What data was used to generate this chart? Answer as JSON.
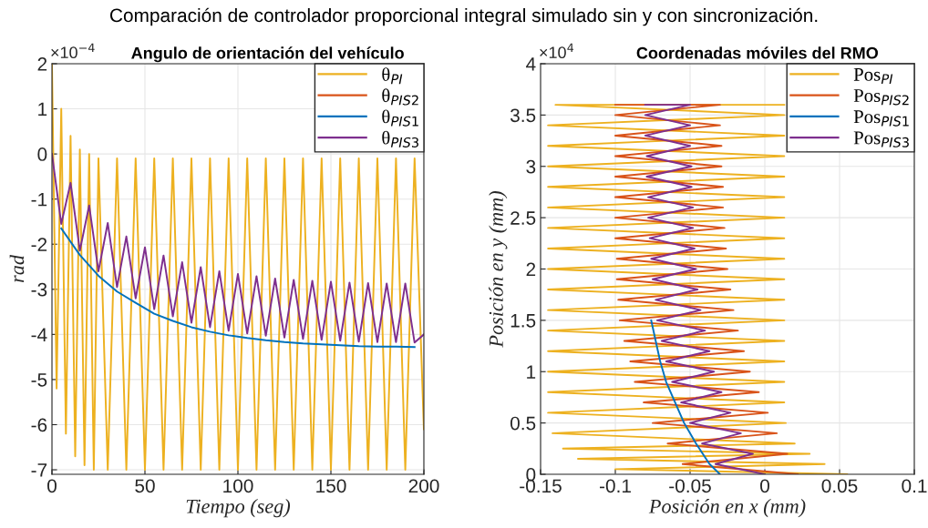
{
  "chart_data": [
    {
      "type": "line",
      "title": "Angulo de orientación del vehículo",
      "xlabel": "Tiempo (seg)",
      "ylabel": "rad",
      "annotations": [
        "Comparación de controlador proporcional integral simulado sin y con sincronización.",
        "×10$^{−4}$"
      ],
      "xlim": [
        0,
        200
      ],
      "ylim": [
        -7.1,
        2
      ],
      "xticks": [
        0,
        50,
        100,
        150,
        200
      ],
      "yticks": [
        2,
        1,
        0,
        -1,
        -2,
        -3,
        -4,
        -5,
        -6,
        -7
      ],
      "grid": true,
      "legend": "top right",
      "series": [
        {
          "name": "θ$_{PI}$",
          "color": "#edb120",
          "x": [
            0,
            2.5,
            5,
            7.5,
            10,
            12.5,
            15,
            17.5,
            20,
            22.5,
            25,
            30,
            35,
            40,
            45,
            50,
            55,
            60,
            65,
            70,
            75,
            80,
            85,
            90,
            95,
            100,
            105,
            110,
            115,
            120,
            125,
            130,
            135,
            140,
            145,
            150,
            155,
            160,
            165,
            170,
            175,
            180,
            185,
            190,
            195,
            200
          ],
          "values": [
            2,
            -5.2,
            1.0,
            -6.2,
            0.4,
            -6.7,
            0.1,
            -6.9,
            0,
            -7.0,
            -0.1,
            -7.0,
            -0.1,
            -7.0,
            -0.1,
            -7.0,
            -0.1,
            -7.0,
            -0.1,
            -7.0,
            -0.1,
            -7.0,
            -0.1,
            -7.0,
            -0.1,
            -7.0,
            -0.1,
            -7.0,
            -0.1,
            -7.0,
            -0.1,
            -7.0,
            -0.1,
            -7.0,
            -0.1,
            -7.0,
            -0.1,
            -7.0,
            -0.1,
            -7.0,
            -0.1,
            -7.0,
            -0.1,
            -7.0,
            -0.1,
            -6.1
          ]
        },
        {
          "name": "θ$_{PIS2}$",
          "color": "#d95319"
        },
        {
          "name": "θ$_{PIS1}$",
          "color": "#0072bd",
          "x": [
            5,
            15,
            25,
            35,
            45,
            55,
            65,
            75,
            85,
            95,
            105,
            115,
            125,
            135,
            145,
            155,
            165,
            175,
            185,
            195
          ],
          "values": [
            -1.65,
            -2.24,
            -2.7,
            -3.05,
            -3.3,
            -3.54,
            -3.7,
            -3.84,
            -3.94,
            -4.02,
            -4.08,
            -4.13,
            -4.17,
            -4.2,
            -4.22,
            -4.24,
            -4.26,
            -4.27,
            -4.27,
            -4.28
          ]
        },
        {
          "name": "θ$_{PIS3}$",
          "color": "#7e2f8e",
          "x": [
            0,
            5,
            10,
            15,
            20,
            25,
            30,
            35,
            40,
            45,
            50,
            55,
            60,
            65,
            70,
            75,
            80,
            85,
            90,
            95,
            100,
            105,
            110,
            115,
            120,
            125,
            130,
            135,
            140,
            145,
            150,
            155,
            160,
            165,
            170,
            175,
            180,
            185,
            190,
            195,
            200
          ],
          "values": [
            0,
            -1.55,
            -0.64,
            -2.14,
            -1.14,
            -2.6,
            -1.53,
            -2.95,
            -1.83,
            -3.2,
            -2.07,
            -3.44,
            -2.25,
            -3.6,
            -2.4,
            -3.74,
            -2.51,
            -3.84,
            -2.6,
            -3.92,
            -2.66,
            -3.98,
            -2.71,
            -4.03,
            -2.76,
            -4.07,
            -2.79,
            -4.1,
            -2.81,
            -4.12,
            -2.83,
            -4.14,
            -2.85,
            -4.16,
            -2.86,
            -4.17,
            -2.87,
            -4.17,
            -2.87,
            -4.18,
            -4.0
          ]
        }
      ]
    },
    {
      "type": "line",
      "title": "Coordenadas móviles del RMO",
      "xlabel": "Posición en x (mm)",
      "ylabel": "Posición en y (mm)",
      "annotations": [
        "×10$^{4}$"
      ],
      "xlim": [
        -0.15,
        0.1
      ],
      "ylim": [
        0,
        4
      ],
      "xticks": [
        -0.15,
        -0.1,
        -0.05,
        0,
        0.05,
        0.1
      ],
      "yticks": [
        0,
        0.5,
        1,
        1.5,
        2,
        2.5,
        3,
        3.5,
        4
      ],
      "grid": true,
      "legend": "top right",
      "series": [
        {
          "name": "Pos$_{PI}$",
          "color": "#edb120",
          "x": [
            0.055,
            -0.1,
            0.04,
            -0.125,
            0.03,
            -0.135,
            0.02,
            -0.142,
            0.014,
            -0.145,
            0.013,
            -0.145,
            0.013,
            -0.145,
            0.013,
            -0.145,
            0.013,
            -0.145,
            0.013,
            -0.145,
            0.013,
            -0.145,
            0.013,
            -0.145,
            0.013,
            -0.145,
            0.013,
            -0.145,
            0.013,
            -0.145,
            0.013,
            -0.145,
            0.013,
            -0.145,
            0.013,
            -0.145,
            0.013,
            -0.145,
            0.013,
            -0.14,
            0.013
          ],
          "values": [
            0,
            0.05,
            0.1,
            0.15,
            0.2,
            0.25,
            0.3,
            0.4,
            0.5,
            0.6,
            0.7,
            0.8,
            0.9,
            1.0,
            1.1,
            1.2,
            1.3,
            1.4,
            1.5,
            1.6,
            1.7,
            1.8,
            1.9,
            2.0,
            2.1,
            2.2,
            2.3,
            2.4,
            2.5,
            2.6,
            2.7,
            2.8,
            2.9,
            3.0,
            3.1,
            3.2,
            3.3,
            3.4,
            3.5,
            3.6,
            3.6
          ]
        },
        {
          "name": "Pos$_{PIS2}$",
          "color": "#d95319",
          "x": [
            0.022,
            -0.055,
            0.015,
            -0.065,
            0.008,
            -0.075,
            0.002,
            -0.081,
            -0.004,
            -0.087,
            -0.01,
            -0.09,
            -0.014,
            -0.094,
            -0.018,
            -0.097,
            -0.021,
            -0.098,
            -0.023,
            -0.099,
            -0.025,
            -0.099,
            -0.026,
            -0.1,
            -0.027,
            -0.1,
            -0.028,
            -0.1,
            -0.028,
            -0.1,
            -0.029,
            -0.1,
            -0.029,
            -0.1,
            -0.03,
            -0.1,
            -0.03,
            -0.1
          ],
          "values": [
            0,
            0.1,
            0.2,
            0.3,
            0.4,
            0.5,
            0.6,
            0.7,
            0.8,
            0.9,
            1.0,
            1.1,
            1.2,
            1.3,
            1.4,
            1.5,
            1.6,
            1.7,
            1.8,
            1.9,
            2.0,
            2.1,
            2.2,
            2.3,
            2.4,
            2.5,
            2.6,
            2.7,
            2.8,
            2.9,
            3.0,
            3.1,
            3.2,
            3.3,
            3.4,
            3.5,
            3.6,
            3.6
          ]
        },
        {
          "name": "Pos$_{PIS1}$",
          "color": "#0072bd",
          "x": [
            -0.03,
            -0.037,
            -0.046,
            -0.054,
            -0.06,
            -0.066,
            -0.07,
            -0.073,
            -0.076
          ],
          "values": [
            0,
            0.1,
            0.3,
            0.5,
            0.7,
            0.9,
            1.1,
            1.3,
            1.5
          ]
        },
        {
          "name": "Pos$_{PIS3}$",
          "color": "#7e2f8e",
          "x": [
            0.0,
            -0.033,
            -0.008,
            -0.042,
            -0.016,
            -0.05,
            -0.023,
            -0.056,
            -0.029,
            -0.062,
            -0.034,
            -0.066,
            -0.037,
            -0.069,
            -0.04,
            -0.072,
            -0.043,
            -0.073,
            -0.045,
            -0.075,
            -0.046,
            -0.076,
            -0.047,
            -0.077,
            -0.048,
            -0.078,
            -0.048,
            -0.078,
            -0.049,
            -0.079,
            -0.049,
            -0.079,
            -0.05,
            -0.08,
            -0.05,
            -0.08,
            -0.05,
            -0.08
          ],
          "values": [
            0,
            0.1,
            0.2,
            0.3,
            0.4,
            0.5,
            0.6,
            0.7,
            0.8,
            0.9,
            1.0,
            1.1,
            1.2,
            1.3,
            1.4,
            1.5,
            1.6,
            1.7,
            1.8,
            1.9,
            2.0,
            2.1,
            2.2,
            2.3,
            2.4,
            2.5,
            2.6,
            2.7,
            2.8,
            2.9,
            3.0,
            3.1,
            3.2,
            3.3,
            3.4,
            3.5,
            3.6,
            3.6
          ]
        }
      ]
    }
  ]
}
